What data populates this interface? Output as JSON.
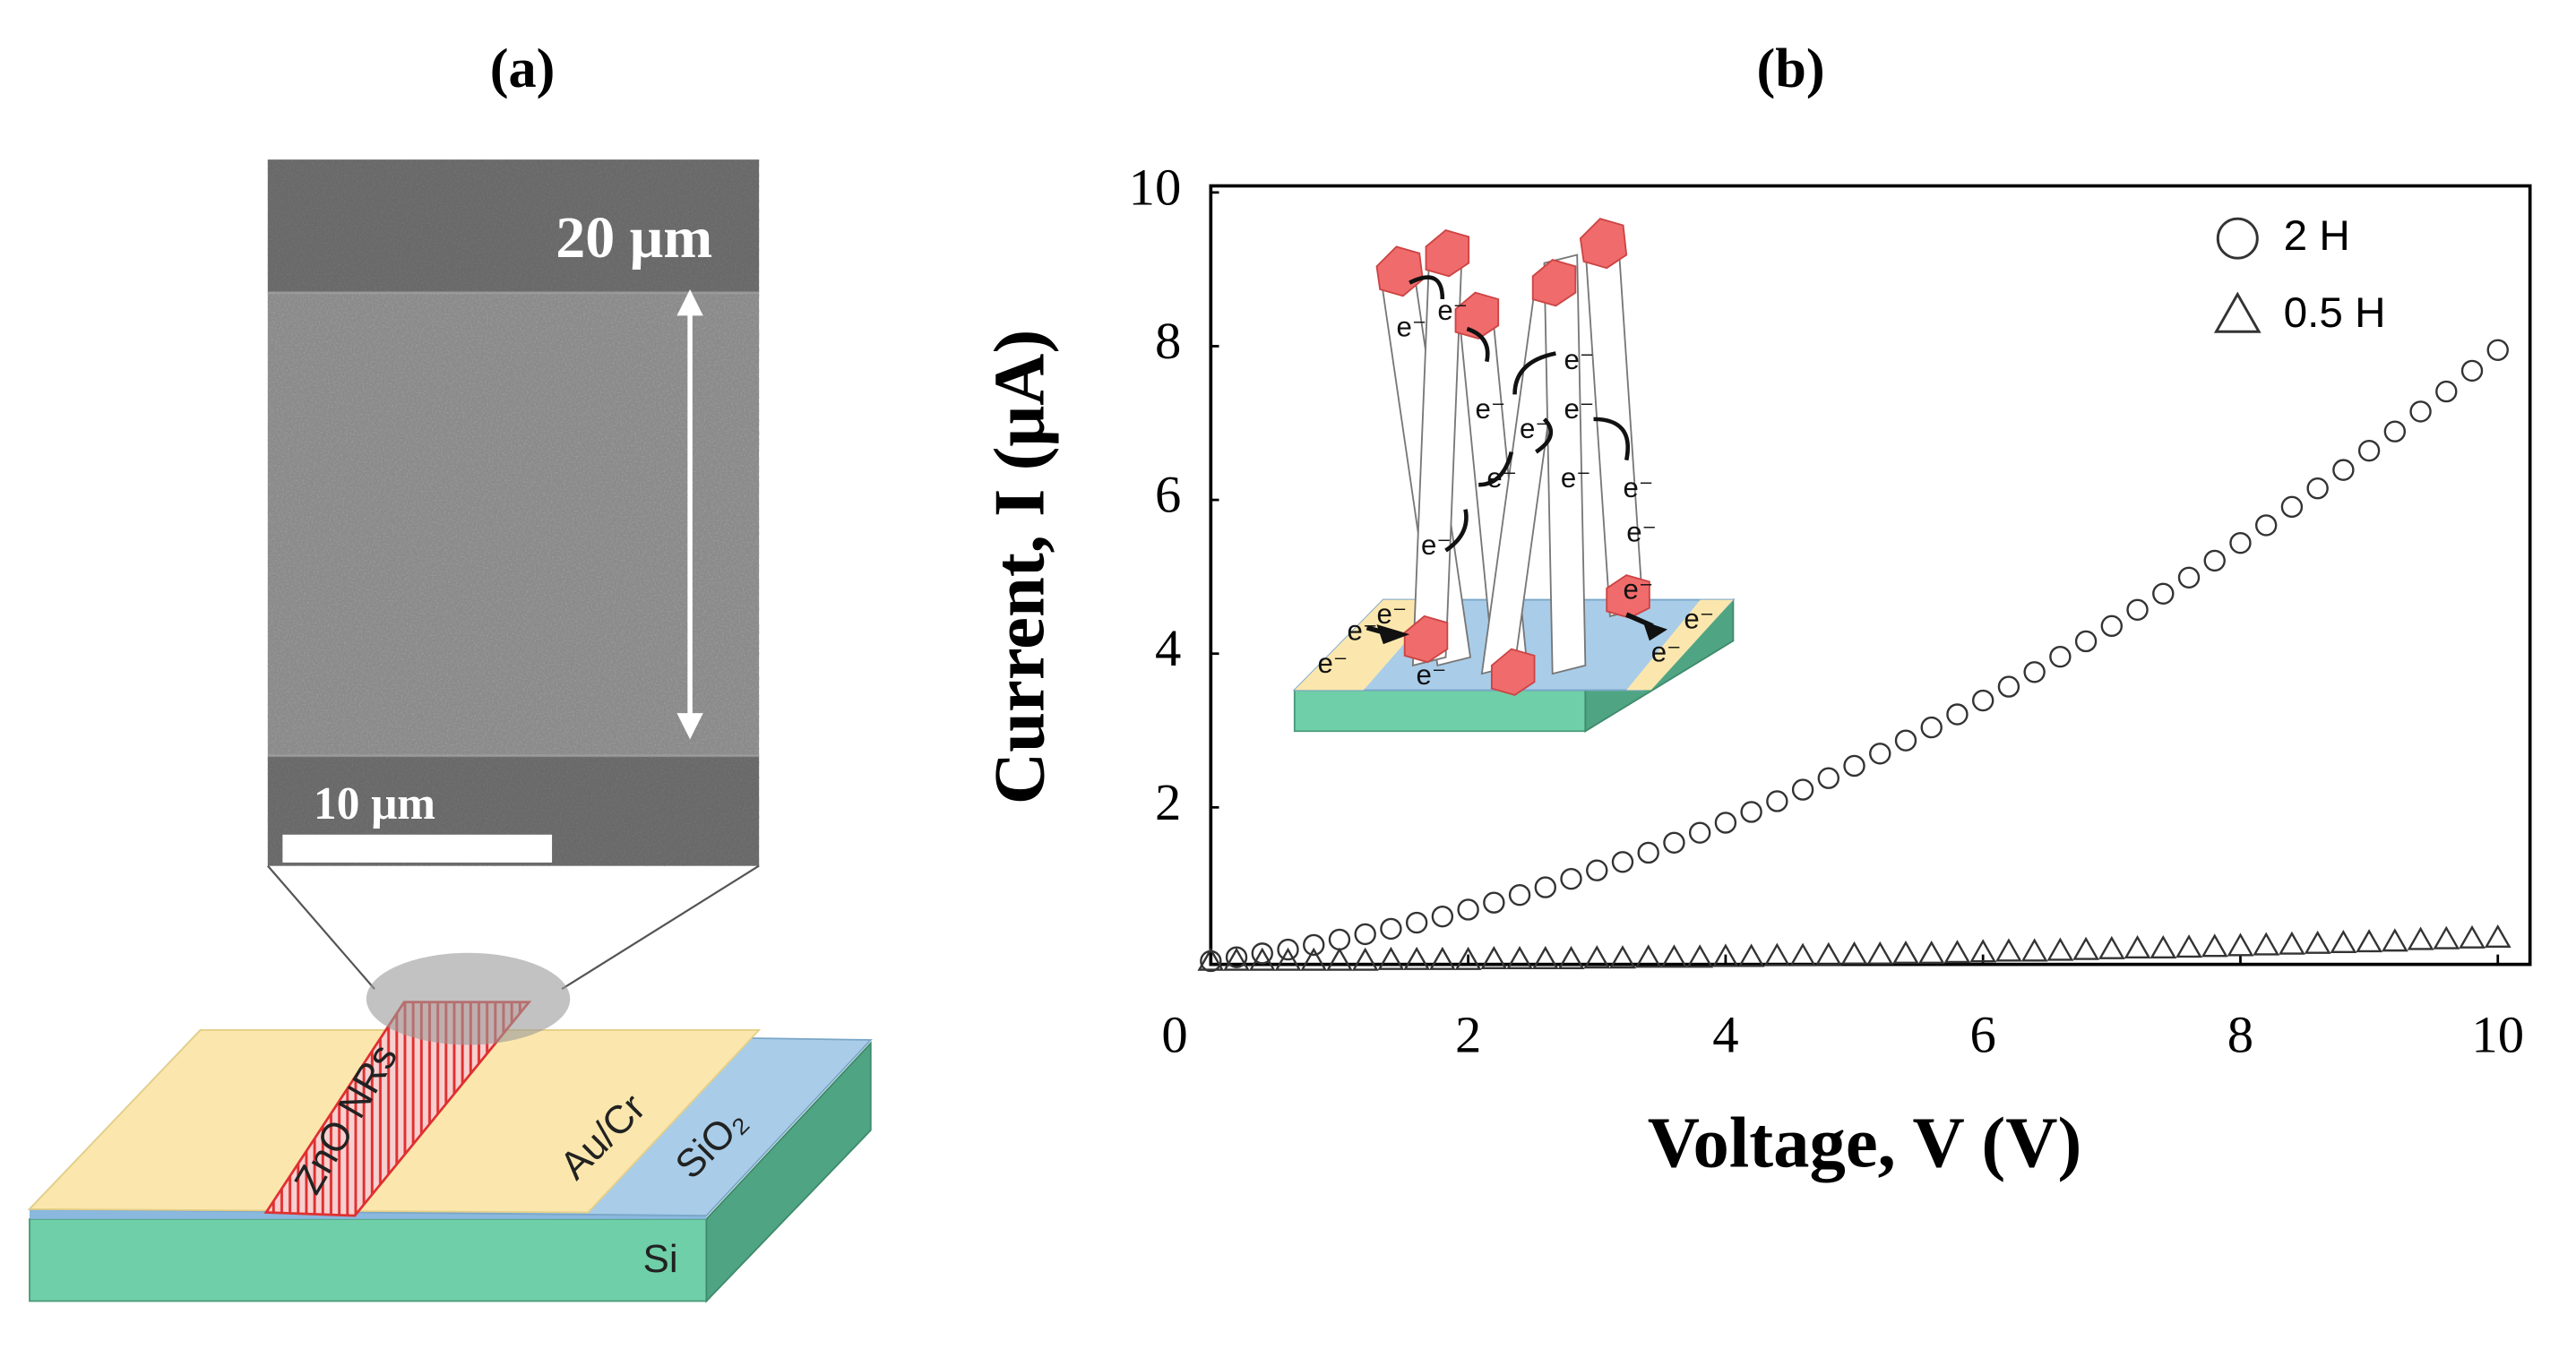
{
  "panel_labels": [
    "(a)",
    "(b)"
  ],
  "panel_a": {
    "scale_height": "20 μm",
    "scale_bar": "10 μm",
    "strip": "ZnO NRs",
    "electrode": "Au/Cr",
    "oxide": "SiO₂",
    "substrate": "Si"
  },
  "inset": {
    "electron": "e⁻"
  },
  "chart_data": {
    "type": "scatter",
    "x_label": "Voltage, V (V)",
    "y_label": "Current, I (μA)",
    "x": [
      0,
      0.2,
      0.4,
      0.6,
      0.8,
      1,
      1.2,
      1.4,
      1.6,
      1.8,
      2,
      2.2,
      2.4,
      2.6,
      2.8,
      3,
      3.2,
      3.4,
      3.6,
      3.8,
      4,
      4.2,
      4.4,
      4.6,
      4.8,
      5,
      5.2,
      5.4,
      5.6,
      5.8,
      6,
      6.2,
      6.4,
      6.6,
      6.8,
      7,
      7.2,
      7.4,
      7.6,
      7.8,
      8,
      8.2,
      8.4,
      8.6,
      8.8,
      9,
      9.2,
      9.4,
      9.6,
      9.8,
      10
    ],
    "series": [
      {
        "name": "2 H",
        "marker": "circle",
        "color": "#333333",
        "values": [
          0,
          0.05,
          0.1,
          0.15,
          0.21,
          0.28,
          0.35,
          0.42,
          0.5,
          0.58,
          0.67,
          0.76,
          0.86,
          0.96,
          1.07,
          1.18,
          1.29,
          1.41,
          1.54,
          1.67,
          1.8,
          1.94,
          2.08,
          2.23,
          2.38,
          2.54,
          2.7,
          2.87,
          3.04,
          3.21,
          3.39,
          3.57,
          3.76,
          3.96,
          4.16,
          4.36,
          4.57,
          4.78,
          4.99,
          5.21,
          5.44,
          5.67,
          5.91,
          6.15,
          6.39,
          6.64,
          6.89,
          7.15,
          7.41,
          7.68,
          7.95
        ]
      },
      {
        "name": "0.5 H",
        "marker": "triangle",
        "color": "#333333",
        "values": [
          0,
          0,
          0,
          0,
          0,
          0,
          0,
          0.01,
          0.01,
          0.01,
          0.01,
          0.02,
          0.02,
          0.02,
          0.02,
          0.03,
          0.03,
          0.04,
          0.04,
          0.04,
          0.05,
          0.05,
          0.06,
          0.06,
          0.07,
          0.08,
          0.08,
          0.09,
          0.09,
          0.1,
          0.11,
          0.12,
          0.12,
          0.13,
          0.14,
          0.15,
          0.16,
          0.16,
          0.17,
          0.18,
          0.19,
          0.2,
          0.21,
          0.22,
          0.23,
          0.24,
          0.25,
          0.27,
          0.28,
          0.29,
          0.3
        ]
      }
    ],
    "xlim": [
      0,
      10.25
    ],
    "ylim": [
      0,
      10
    ],
    "xticks": [
      0,
      2,
      4,
      6,
      8,
      10
    ],
    "yticks": [
      2,
      4,
      6,
      8,
      10
    ],
    "grid": false,
    "legend": "upper right"
  }
}
